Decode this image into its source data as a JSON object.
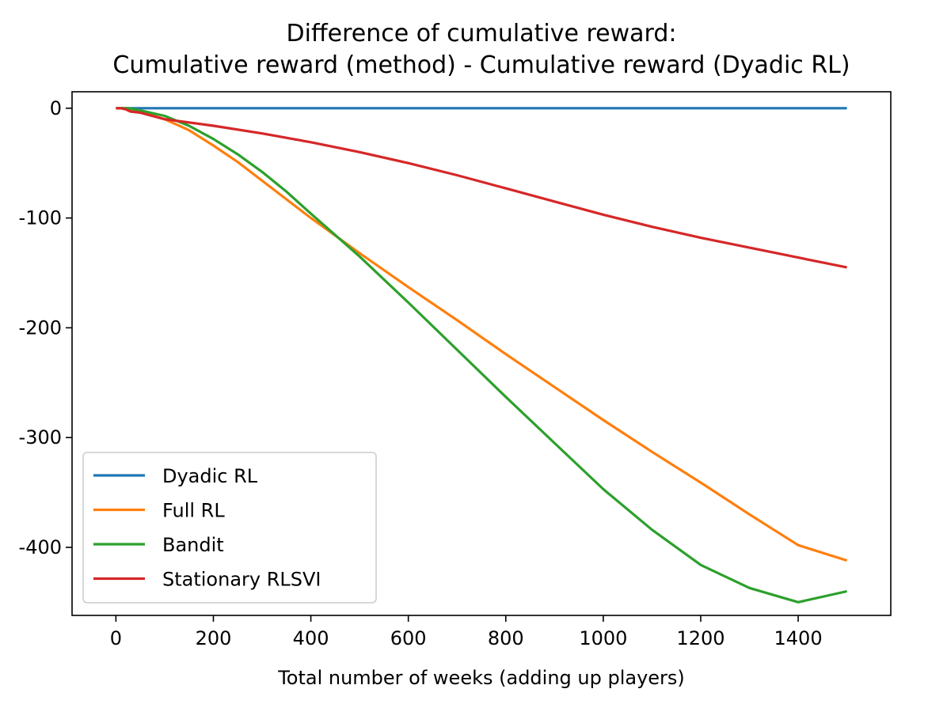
{
  "chart_data": {
    "type": "line",
    "title_line1": "Difference of cumulative reward:",
    "title_line2": "Cumulative reward (method) - Cumulative reward (Dyadic RL)",
    "xlabel": "Total number of weeks (adding up players)",
    "ylabel": "",
    "xlim": [
      -90,
      1590
    ],
    "ylim": [
      -462,
      15
    ],
    "xticks": [
      0,
      200,
      400,
      600,
      800,
      1000,
      1200,
      1400
    ],
    "xtick_labels": [
      "0",
      "200",
      "400",
      "600",
      "800",
      "1000",
      "1200",
      "1400"
    ],
    "yticks": [
      0,
      -100,
      -200,
      -300,
      -400
    ],
    "ytick_labels": [
      "0",
      "-100",
      "-200",
      "-300",
      "-400"
    ],
    "legend_position": "lower-left",
    "series": [
      {
        "name": "Dyadic RL",
        "color": "#1f77b4",
        "x": [
          0,
          1500
        ],
        "y": [
          0,
          0
        ]
      },
      {
        "name": "Full RL",
        "color": "#ff7f0e",
        "x": [
          0,
          20,
          50,
          100,
          150,
          200,
          250,
          300,
          400,
          500,
          600,
          700,
          800,
          900,
          1000,
          1100,
          1200,
          1300,
          1400,
          1500
        ],
        "y": [
          0,
          0,
          -3,
          -10,
          -20,
          -34,
          -49,
          -66,
          -100,
          -132,
          -163,
          -193,
          -224,
          -254,
          -284,
          -313,
          -341,
          -370,
          -398,
          -412
        ]
      },
      {
        "name": "Bandit",
        "color": "#2ca02c",
        "x": [
          0,
          25,
          50,
          100,
          150,
          200,
          250,
          300,
          350,
          400,
          500,
          600,
          700,
          800,
          900,
          1000,
          1100,
          1200,
          1300,
          1400,
          1500
        ],
        "y": [
          0,
          0,
          -2,
          -7,
          -16,
          -28,
          -42,
          -58,
          -76,
          -96,
          -135,
          -177,
          -220,
          -263,
          -305,
          -347,
          -384,
          -416,
          -437,
          -450,
          -440
        ]
      },
      {
        "name": "Stationary RLSVI",
        "color": "#d62728",
        "x": [
          0,
          10,
          20,
          30,
          50,
          100,
          200,
          300,
          400,
          500,
          600,
          700,
          800,
          900,
          1000,
          1100,
          1200,
          1300,
          1400,
          1500
        ],
        "y": [
          0,
          0,
          -1,
          -3,
          -4,
          -10,
          -16,
          -23,
          -31,
          -40,
          -50,
          -61,
          -73,
          -85,
          -97,
          -108,
          -118,
          -127,
          -136,
          -145
        ]
      }
    ]
  }
}
